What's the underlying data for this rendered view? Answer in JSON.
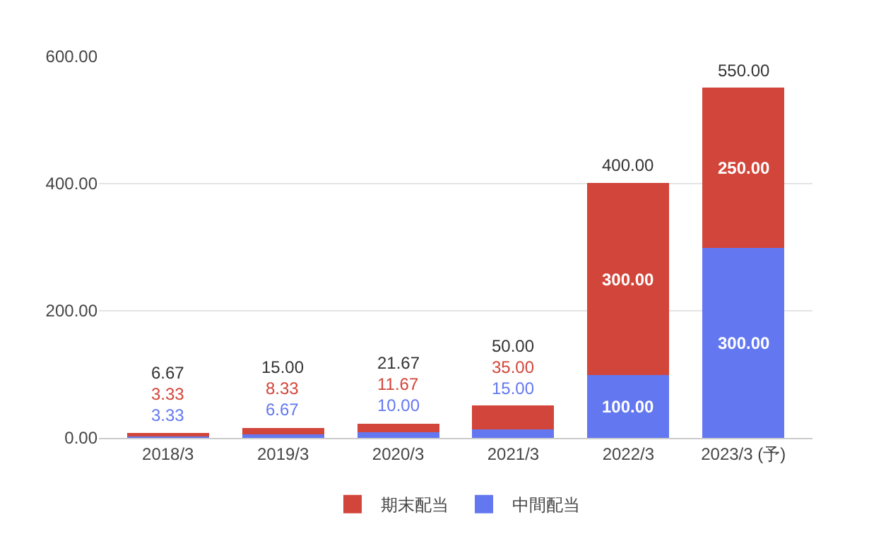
{
  "chart_data": {
    "type": "bar",
    "stacked": true,
    "categories": [
      "2018/3",
      "2019/3",
      "2020/3",
      "2021/3",
      "2022/3",
      "2023/3 (予)"
    ],
    "series": [
      {
        "name": "中間配当",
        "color": "#6378f0",
        "values": [
          3.33,
          6.67,
          10,
          15,
          100,
          300
        ],
        "value_labels": [
          "3.33",
          "6.67",
          "10.00",
          "15.00",
          "100.00",
          "300.00"
        ]
      },
      {
        "name": "期末配当",
        "color": "#d2453a",
        "values": [
          3.33,
          8.33,
          11.67,
          35,
          300,
          250
        ],
        "value_labels": [
          "3.33",
          "8.33",
          "11.67",
          "35.00",
          "300.00",
          "250.00"
        ]
      }
    ],
    "totals": [
      "6.67",
      "15.00",
      "21.67",
      "50.00",
      "400.00",
      "550.00"
    ],
    "ylim": [
      0,
      600
    ],
    "yticks": [
      {
        "value": 0,
        "label": "0.00"
      },
      {
        "value": 200,
        "label": "200.00"
      },
      {
        "value": 400,
        "label": "400.00"
      },
      {
        "value": 600,
        "label": "600.00"
      }
    ],
    "grid": "y",
    "legend": "bottom"
  }
}
